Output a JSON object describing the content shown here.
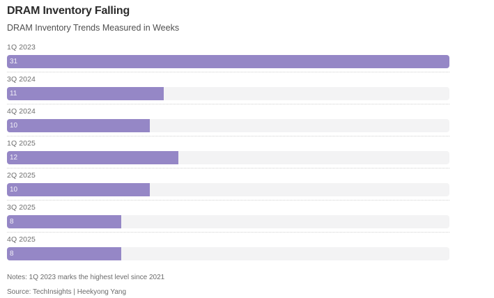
{
  "header": {
    "title": "DRAM Inventory Falling",
    "subtitle": "DRAM Inventory Trends Measured in Weeks"
  },
  "chart_data": {
    "type": "bar",
    "orientation": "horizontal",
    "title": "DRAM Inventory Falling",
    "subtitle": "DRAM Inventory Trends Measured in Weeks",
    "unit": "weeks",
    "categories": [
      "1Q 2023",
      "3Q 2024",
      "4Q 2024",
      "1Q 2025",
      "2Q 2025",
      "3Q 2025",
      "4Q 2025"
    ],
    "values": [
      31,
      11,
      10,
      12,
      10,
      8,
      8
    ],
    "xlim": [
      0,
      31
    ],
    "value_labels_inside_bar": true,
    "grid": "dotted-row-separators",
    "legend": "none",
    "colors": {
      "bar": "#9587c6",
      "track": "#f3f3f4",
      "value_label": "rgba(255,255,255,0.88)",
      "category_label": "#6e6e6e",
      "separator": "#d0d0d0",
      "title": "#2b2b2b",
      "subtitle": "#4f4f4f",
      "footer_text": "#6a6a6a"
    }
  },
  "footer": {
    "notes": "Notes: 1Q 2023 marks the highest level since 2021",
    "source": "Source: TechInsights | Heekyong Yang"
  }
}
